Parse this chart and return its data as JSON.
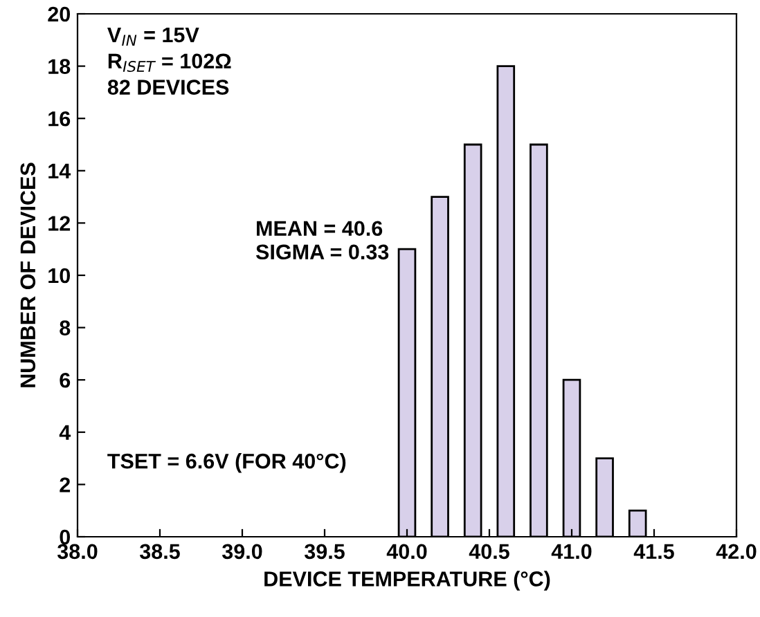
{
  "chart_data": {
    "type": "bar",
    "xlabel": "DEVICE TEMPERATURE (°C)",
    "ylabel": "NUMBER OF DEVICES",
    "x": [
      40.0,
      40.2,
      40.4,
      40.6,
      40.8,
      41.0,
      41.2,
      41.4
    ],
    "values": [
      11,
      13,
      15,
      18,
      15,
      6,
      3,
      1
    ],
    "color": "#d8d0ea",
    "xlim": [
      38,
      42
    ],
    "xticks": [
      {
        "value": 38,
        "label": "38.0"
      },
      {
        "value": 38.5,
        "label": "38.5"
      },
      {
        "value": 39,
        "label": "39.0"
      },
      {
        "value": 39.5,
        "label": "39.5"
      },
      {
        "value": 40,
        "label": "40.0"
      },
      {
        "value": 40.5,
        "label": "40.5"
      },
      {
        "value": 41,
        "label": "41.0"
      },
      {
        "value": 41.5,
        "label": "41.5"
      },
      {
        "value": 42,
        "label": "42.0"
      }
    ],
    "ylim": [
      0,
      20
    ],
    "yticks": [
      0,
      2,
      4,
      6,
      8,
      10,
      12,
      14,
      16,
      18,
      20
    ],
    "grid": false,
    "annotations": [
      "V$_{IN}$ = 15V",
      "R$_{ISET}$ = 102Ω",
      "82 DEVICES",
      "MEAN = 40.6",
      "SIGMA = 0.33",
      "TSET = 6.6V (FOR 40°C)"
    ]
  }
}
